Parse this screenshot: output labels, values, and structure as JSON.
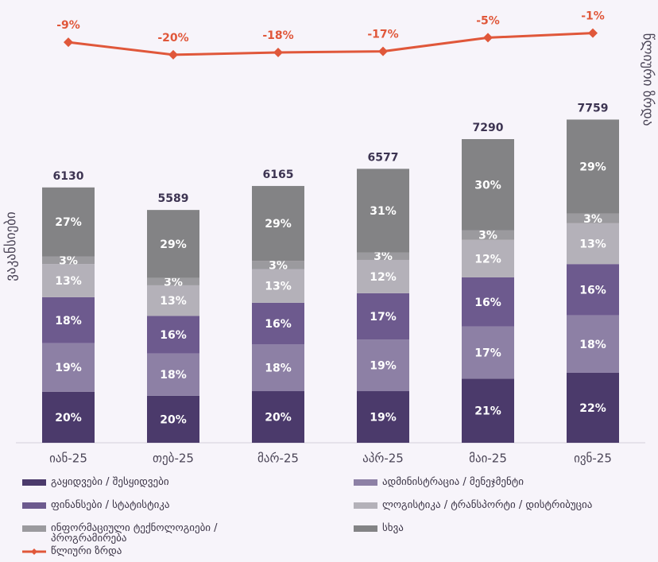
{
  "chart_data": {
    "type": "stacked-bar-line",
    "categories": [
      "იან-25",
      "თებ-25",
      "მარ-25",
      "აპრ-25",
      "მაი-25",
      "ივნ-25"
    ],
    "ylabel": "ვაკანსიები",
    "y2label": "წლიური ზრდა",
    "ylim": [
      0,
      10000
    ],
    "y2lim": [
      -360,
      5
    ],
    "totals": [
      6130,
      5589,
      6165,
      6577,
      7290,
      7759
    ],
    "series": [
      {
        "name": "გაყიდვები / შესყიდვები",
        "color": "#4b3a6b",
        "values": [
          1226,
          1130,
          1240,
          1240,
          1540,
          1680
        ],
        "value_labels": [
          "20%",
          "20%",
          "20%",
          "19%",
          "21%",
          "22%"
        ]
      },
      {
        "name": "ადმინისტრაცია / მენეჯმენტი",
        "color": "#8d80a5",
        "values": [
          1165,
          1015,
          1120,
          1240,
          1250,
          1380
        ],
        "value_labels": [
          "19%",
          "18%",
          "18%",
          "19%",
          "17%",
          "18%"
        ]
      },
      {
        "name": "ფინანსები / სტატისტიკა",
        "color": "#6d5a8e",
        "values": [
          1103,
          900,
          1000,
          1110,
          1180,
          1230
        ],
        "value_labels": [
          "18%",
          "16%",
          "16%",
          "17%",
          "16%",
          "16%"
        ]
      },
      {
        "name": "ლოგისტიკა / ტრანსპორტი / დისტრიბუცია",
        "color": "#b4b1b9",
        "values": [
          797,
          735,
          810,
          800,
          900,
          980
        ],
        "value_labels": [
          "13%",
          "13%",
          "13%",
          "12%",
          "12%",
          "13%"
        ]
      },
      {
        "name": "ინფორმაციული ტექნოლოგიები / პროგრამირება",
        "color": "#9b9a9e",
        "values": [
          184,
          175,
          195,
          180,
          235,
          230
        ],
        "value_labels": [
          "3%",
          "3%",
          "3%",
          "3%",
          "3%",
          "3%"
        ]
      },
      {
        "name": "სხვა",
        "color": "#838385",
        "values": [
          1655,
          1634,
          1800,
          2007,
          2185,
          2259
        ],
        "value_labels": [
          "27%",
          "29%",
          "29%",
          "31%",
          "30%",
          "29%"
        ]
      },
      {
        "name": "წლიური ზრდა",
        "type": "line",
        "axis": "y2",
        "color": "#e0573a",
        "values": [
          -9,
          -20,
          -18,
          -17,
          -5,
          -1
        ],
        "value_labels": [
          "-9%",
          "-20%",
          "-18%",
          "-17%",
          "-5%",
          "-1%"
        ]
      }
    ]
  }
}
